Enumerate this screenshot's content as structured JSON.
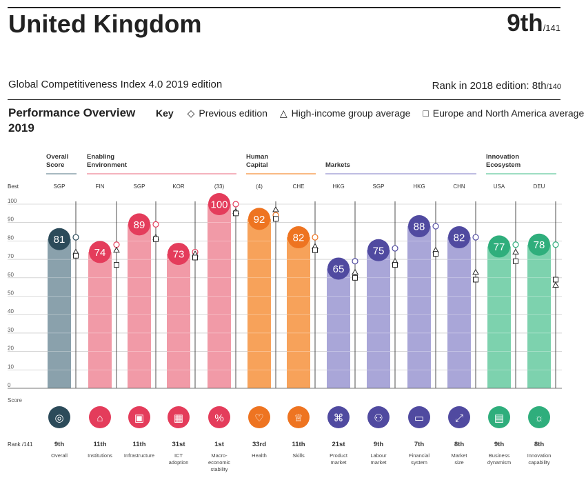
{
  "header": {
    "country": "United Kingdom",
    "rank": "9th",
    "rank_total": "/141",
    "subtitle": "Global Competitiveness Index 4.0 2019 edition",
    "prev_rank_label": "Rank in 2018 edition: 8th",
    "prev_rank_total": "/140"
  },
  "overview": {
    "title": "Performance Overview 2019",
    "key_label": "Key",
    "key_previous": "Previous edition",
    "key_high_income": "High-income group average",
    "key_europe": "Europe and North America average"
  },
  "axis": {
    "best_label": "Best",
    "score_label": "Score",
    "rank_label": "Rank /141",
    "ticks": [
      0,
      10,
      20,
      30,
      40,
      50,
      60,
      70,
      80,
      90,
      100
    ]
  },
  "colors": {
    "overall": "#8aa1ac",
    "overall_dark": "#2c4b5a",
    "enabling": "#f19aa7",
    "enabling_dark": "#e43c5b",
    "human": "#f7a25a",
    "human_dark": "#ee7421",
    "markets": "#a9a6d8",
    "markets_dark": "#504aa0",
    "innovation": "#7dd2ae",
    "innovation_dark": "#2fae7c"
  },
  "groups": [
    {
      "name": "Overall Score",
      "color": "overall",
      "from": 0,
      "to": 0
    },
    {
      "name": "Enabling Environment",
      "color": "enabling",
      "from": 1,
      "to": 4
    },
    {
      "name": "Human Capital",
      "color": "human",
      "from": 5,
      "to": 6
    },
    {
      "name": "Markets",
      "color": "markets",
      "from": 7,
      "to": 10
    },
    {
      "name": "Innovation Ecosystem",
      "color": "innovation",
      "from": 11,
      "to": 12
    }
  ],
  "chart_data": {
    "type": "bar",
    "title": "Performance Overview 2019",
    "ylim": [
      0,
      100
    ],
    "categories": [
      "Overall",
      "Institutions",
      "Infrastructure",
      "ICT adoption",
      "Macro-economic stability",
      "Health",
      "Skills",
      "Product market",
      "Labour market",
      "Financial system",
      "Market size",
      "Business dynamism",
      "Innovation capability"
    ],
    "best": [
      "SGP",
      "FIN",
      "SGP",
      "KOR",
      "(33)",
      "(4)",
      "CHE",
      "HKG",
      "SGP",
      "HKG",
      "CHN",
      "USA",
      "DEU"
    ],
    "series": [
      {
        "name": "Score",
        "values": [
          81,
          74,
          89,
          73,
          100,
          92,
          82,
          65,
          75,
          88,
          82,
          77,
          78
        ]
      },
      {
        "name": "Previous edition",
        "values": [
          82,
          78,
          89,
          74,
          100,
          94,
          82,
          69,
          76,
          88,
          82,
          78,
          78
        ]
      },
      {
        "name": "High-income group average",
        "values": [
          74,
          75,
          82,
          73,
          96,
          97,
          77,
          63,
          69,
          75,
          63,
          74,
          56
        ]
      },
      {
        "name": "Europe and North America average",
        "values": [
          72,
          67,
          81,
          71,
          95,
          92,
          75,
          60,
          67,
          73,
          59,
          69,
          59
        ]
      }
    ],
    "ranks": [
      "9th",
      "11th",
      "11th",
      "31st",
      "1st",
      "33rd",
      "11th",
      "21st",
      "9th",
      "7th",
      "8th",
      "9th",
      "8th"
    ],
    "pillar_labels": [
      "Overall",
      "Institutions",
      "Infrastructure",
      "ICT adoption",
      "Macro-economic stability",
      "Health",
      "Skills",
      "Product market",
      "Labour market",
      "Financial system",
      "Market size",
      "Business dynamism",
      "Innovation capability"
    ]
  },
  "pillar_groups": [
    "overall",
    "enabling",
    "enabling",
    "enabling",
    "enabling",
    "human",
    "human",
    "markets",
    "markets",
    "markets",
    "markets",
    "innovation",
    "innovation"
  ],
  "icons": [
    "medal-icon",
    "institution-icon",
    "infrastructure-icon",
    "chip-icon",
    "percent-icon",
    "heart-pulse-icon",
    "graduate-icon",
    "price-tag-icon",
    "people-icon",
    "card-icon",
    "expand-icon",
    "building-icon",
    "lightbulb-icon"
  ]
}
